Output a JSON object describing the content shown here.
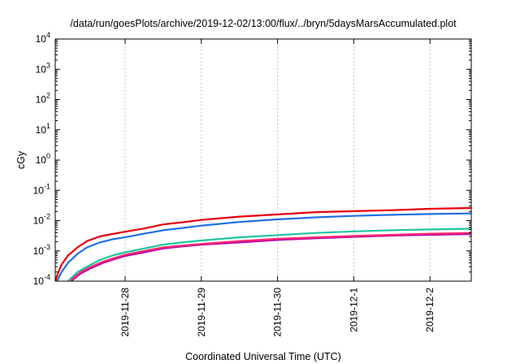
{
  "chart_data": {
    "type": "line",
    "title": "/data/run/goesPlots/archive/2019-12-02/13:00/flux/../bryn/5daysMarsAccumulated.plot",
    "xlabel": "Coordinated Universal Time (UTC)",
    "ylabel": "cGy",
    "yscale": "log",
    "ylim": [
      0.0001,
      10000
    ],
    "xlim": [
      "2019-11-27 02:00",
      "2019-12-02 13:00"
    ],
    "x_tick_labels": [
      "2019-11-28",
      "2019-11-29",
      "2019-11-30",
      "2019-12-1",
      "2019-12-2"
    ],
    "x_tick_dates": [
      "2019-11-28 00:00",
      "2019-11-29 00:00",
      "2019-11-30 00:00",
      "2019-12-01 00:00",
      "2019-12-02 00:00"
    ],
    "y_ticks": [
      {
        "value": 0.0001,
        "base": "10",
        "exp": "-4"
      },
      {
        "value": 0.001,
        "base": "10",
        "exp": "-3"
      },
      {
        "value": 0.01,
        "base": "10",
        "exp": "-2"
      },
      {
        "value": 0.1,
        "base": "10",
        "exp": "-1"
      },
      {
        "value": 1,
        "base": "10",
        "exp": "0"
      },
      {
        "value": 10,
        "base": "10",
        "exp": "1"
      },
      {
        "value": 100,
        "base": "10",
        "exp": "2"
      },
      {
        "value": 1000,
        "base": "10",
        "exp": "3"
      },
      {
        "value": 10000,
        "base": "10",
        "exp": "4"
      }
    ],
    "grid": true,
    "legend": "none",
    "series": [
      {
        "color": "#e8000b",
        "x": [
          "2019-11-27 02:00",
          "2019-11-27 03:00",
          "2019-11-27 04:00",
          "2019-11-27 06:00",
          "2019-11-27 09:00",
          "2019-11-27 12:00",
          "2019-11-27 16:00",
          "2019-11-27 20:00",
          "2019-11-28 00:00",
          "2019-11-28 06:00",
          "2019-11-28 12:00",
          "2019-11-28 18:00",
          "2019-11-29 00:00",
          "2019-11-29 12:00",
          "2019-11-30 00:00",
          "2019-11-30 12:00",
          "2019-12-01 00:00",
          "2019-12-01 12:00",
          "2019-12-02 00:00",
          "2019-12-02 13:00"
        ],
        "y": [
          0.0001,
          0.0002,
          0.00035,
          0.0007,
          0.0013,
          0.0021,
          0.003,
          0.0036,
          0.0043,
          0.0055,
          0.0075,
          0.0088,
          0.0105,
          0.0135,
          0.016,
          0.019,
          0.0205,
          0.022,
          0.0245,
          0.026
        ]
      },
      {
        "color": "#1f6fe5",
        "x": [
          "2019-11-27 02:30",
          "2019-11-27 04:00",
          "2019-11-27 06:00",
          "2019-11-27 09:00",
          "2019-11-27 12:00",
          "2019-11-27 16:00",
          "2019-11-27 20:00",
          "2019-11-28 00:00",
          "2019-11-28 06:00",
          "2019-11-28 12:00",
          "2019-11-28 18:00",
          "2019-11-29 00:00",
          "2019-11-29 12:00",
          "2019-11-30 00:00",
          "2019-11-30 12:00",
          "2019-12-01 00:00",
          "2019-12-01 12:00",
          "2019-12-02 00:00",
          "2019-12-02 13:00"
        ],
        "y": [
          0.0001,
          0.0002,
          0.0004,
          0.0008,
          0.0013,
          0.0019,
          0.0024,
          0.0028,
          0.0037,
          0.0048,
          0.0057,
          0.0068,
          0.009,
          0.011,
          0.0128,
          0.0143,
          0.0155,
          0.0165,
          0.0172
        ]
      },
      {
        "color": "#20c6a0",
        "x": [
          "2019-11-27 06:00",
          "2019-11-27 09:00",
          "2019-11-27 12:00",
          "2019-11-27 16:00",
          "2019-11-27 20:00",
          "2019-11-28 00:00",
          "2019-11-28 06:00",
          "2019-11-28 12:00",
          "2019-11-28 18:00",
          "2019-11-29 00:00",
          "2019-11-29 12:00",
          "2019-11-30 00:00",
          "2019-11-30 12:00",
          "2019-12-01 00:00",
          "2019-12-01 12:00",
          "2019-12-02 00:00",
          "2019-12-02 13:00"
        ],
        "y": [
          0.0001,
          0.0002,
          0.0003,
          0.0005,
          0.0007,
          0.0009,
          0.0012,
          0.0016,
          0.0019,
          0.0022,
          0.0028,
          0.0033,
          0.0039,
          0.0044,
          0.0048,
          0.0051,
          0.0054
        ]
      },
      {
        "color": "#b300b3",
        "x": [
          "2019-11-27 07:00",
          "2019-11-27 10:00",
          "2019-11-27 13:00",
          "2019-11-27 17:00",
          "2019-11-27 21:00",
          "2019-11-28 00:00",
          "2019-11-28 06:00",
          "2019-11-28 12:00",
          "2019-11-28 18:00",
          "2019-11-29 00:00",
          "2019-11-29 12:00",
          "2019-11-30 00:00",
          "2019-11-30 12:00",
          "2019-12-01 00:00",
          "2019-12-01 12:00",
          "2019-12-02 00:00",
          "2019-12-02 13:00"
        ],
        "y": [
          0.0001,
          0.00018,
          0.00026,
          0.0004,
          0.00055,
          0.00068,
          0.0009,
          0.0012,
          0.0014,
          0.0016,
          0.0019,
          0.0023,
          0.0026,
          0.0029,
          0.0032,
          0.0034,
          0.0036
        ]
      },
      {
        "color": "#ff2a6d",
        "x": [
          "2019-11-27 07:00",
          "2019-11-27 10:00",
          "2019-11-27 13:00",
          "2019-11-27 17:00",
          "2019-11-27 21:00",
          "2019-11-28 00:00",
          "2019-11-28 06:00",
          "2019-11-28 12:00",
          "2019-11-28 18:00",
          "2019-11-29 00:00",
          "2019-11-29 12:00",
          "2019-11-30 00:00",
          "2019-11-30 12:00",
          "2019-12-01 00:00",
          "2019-12-01 12:00",
          "2019-12-02 00:00",
          "2019-12-02 13:00"
        ],
        "y": [
          0.00011,
          0.0002,
          0.00029,
          0.00044,
          0.0006,
          0.00075,
          0.001,
          0.0013,
          0.0015,
          0.0017,
          0.0021,
          0.0025,
          0.0028,
          0.0031,
          0.0034,
          0.0037,
          0.0039
        ]
      }
    ]
  }
}
